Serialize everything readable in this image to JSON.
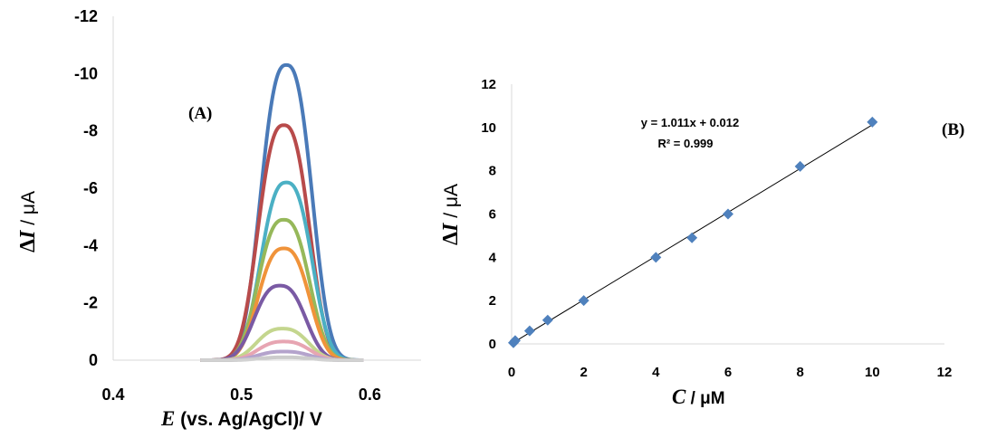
{
  "chart_data": [
    {
      "type": "line",
      "panel_label": "(A)",
      "xlabel_var": "E",
      "xlabel_rest": " (vs. Ag/AgCl)/ V",
      "ylabel_var": "I",
      "ylabel_prefix": "Δ",
      "ylabel_unit": " / μA",
      "xlim": [
        0.4,
        0.64
      ],
      "ylim": [
        0,
        -12
      ],
      "y_inverted": true,
      "x_ticks": [
        "0.4",
        "0.5",
        "0.6"
      ],
      "x_tick_values": [
        0.4,
        0.5,
        0.6
      ],
      "y_ticks": [
        "0",
        "-2",
        "-4",
        "-6",
        "-8",
        "-10",
        "-12"
      ],
      "y_tick_values": [
        0,
        -2,
        -4,
        -6,
        -8,
        -10,
        -12
      ],
      "grid": false,
      "series": [
        {
          "peak_potential": 0.535,
          "peak_current": -10.3,
          "color": "#4a7ab8"
        },
        {
          "peak_potential": 0.533,
          "peak_current": -8.2,
          "color": "#b84b4b"
        },
        {
          "peak_potential": 0.535,
          "peak_current": -6.2,
          "color": "#4bb0c4"
        },
        {
          "peak_potential": 0.533,
          "peak_current": -4.9,
          "color": "#96b85a"
        },
        {
          "peak_potential": 0.533,
          "peak_current": -3.9,
          "color": "#f0933a"
        },
        {
          "peak_potential": 0.53,
          "peak_current": -2.6,
          "color": "#7a5aa4"
        },
        {
          "peak_potential": 0.532,
          "peak_current": -1.1,
          "color": "#c4d68e"
        },
        {
          "peak_potential": 0.533,
          "peak_current": -0.65,
          "color": "#e7a5b2"
        },
        {
          "peak_potential": 0.533,
          "peak_current": -0.3,
          "color": "#b4a3cc"
        },
        {
          "peak_potential": 0.534,
          "peak_current": -0.1,
          "color": "#cccccc"
        }
      ]
    },
    {
      "type": "scatter",
      "panel_label": "(B)",
      "xlabel_var": "C",
      "xlabel_unit": " / μM",
      "ylabel_var": "I",
      "ylabel_prefix": "Δ",
      "ylabel_unit": " / μA",
      "xlim": [
        0,
        12
      ],
      "ylim": [
        0,
        12
      ],
      "x_ticks": [
        "0",
        "2",
        "4",
        "6",
        "8",
        "10",
        "12"
      ],
      "x_tick_values": [
        0,
        2,
        4,
        6,
        8,
        10,
        12
      ],
      "y_ticks": [
        "0",
        "2",
        "4",
        "6",
        "8",
        "10",
        "12"
      ],
      "y_tick_values": [
        0,
        2,
        4,
        6,
        8,
        10,
        12
      ],
      "grid": false,
      "marker_color": "#4f81bd",
      "points": [
        {
          "x": 0.05,
          "y": 0.05
        },
        {
          "x": 0.1,
          "y": 0.15
        },
        {
          "x": 0.5,
          "y": 0.6
        },
        {
          "x": 1,
          "y": 1.1
        },
        {
          "x": 2,
          "y": 2.0
        },
        {
          "x": 4,
          "y": 4.0
        },
        {
          "x": 5,
          "y": 4.9
        },
        {
          "x": 6,
          "y": 6.0
        },
        {
          "x": 8,
          "y": 8.2
        },
        {
          "x": 10,
          "y": 10.25
        }
      ],
      "trendline": {
        "slope": 1.011,
        "intercept": 0.012,
        "x_range": [
          0,
          10
        ]
      },
      "equation": "y = 1.011x + 0.012",
      "r_squared": "R² = 0.999"
    }
  ]
}
